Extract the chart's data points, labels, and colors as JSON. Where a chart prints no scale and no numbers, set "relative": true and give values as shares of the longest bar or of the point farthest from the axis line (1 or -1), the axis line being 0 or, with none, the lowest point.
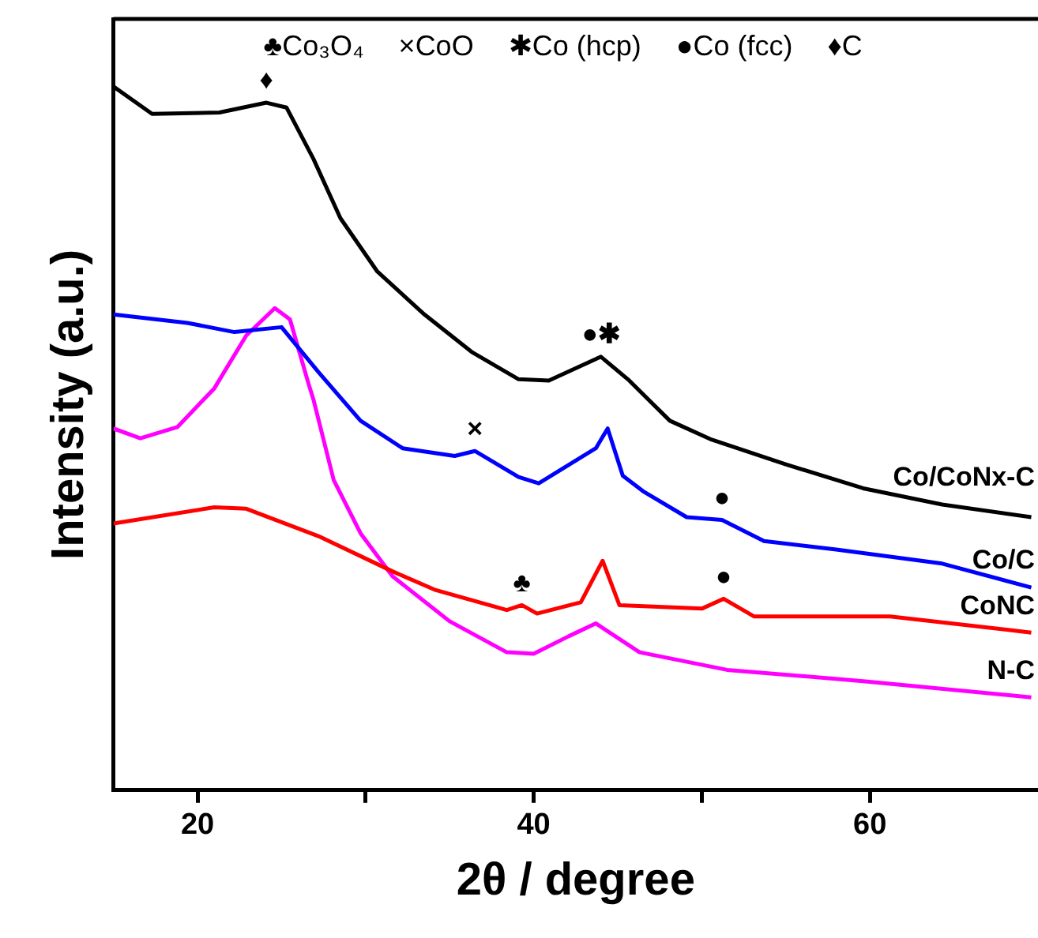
{
  "chart_data": {
    "type": "line",
    "relative": true,
    "xlabel": "2θ / degree",
    "ylabel": "Intensity (a.u.)",
    "xlim": [
      15,
      70
    ],
    "xticks": [
      20,
      {
        "value": 30,
        "label": null
      },
      40,
      {
        "value": 50,
        "label": null
      },
      60
    ],
    "marker": "none",
    "line_style": "solid",
    "grid": false,
    "legend": false,
    "series": [
      {
        "name": "Co/CoNx-C",
        "color": "#000000",
        "x": [
          15,
          17.3,
          21.3,
          24.1,
          25.3,
          26.9,
          28.5,
          30.7,
          33.5,
          36.3,
          39.1,
          40.9,
          44.0,
          45.6,
          48.1,
          50.6,
          55.0,
          59.6,
          64.3,
          69.6
        ],
        "values": [
          1.0,
          0.961,
          0.963,
          0.977,
          0.97,
          0.897,
          0.813,
          0.737,
          0.676,
          0.623,
          0.584,
          0.582,
          0.616,
          0.584,
          0.525,
          0.498,
          0.463,
          0.429,
          0.406,
          0.388
        ]
      },
      {
        "name": "Co/C",
        "color": "#0000ff",
        "x": [
          15,
          19.4,
          22.2,
          25.0,
          27.2,
          29.7,
          32.2,
          35.3,
          36.5,
          39.1,
          40.3,
          43.7,
          44.4,
          45.3,
          46.5,
          49.1,
          51.2,
          53.7,
          58.0,
          64.3,
          69.6
        ],
        "values": [
          0.676,
          0.664,
          0.651,
          0.658,
          0.594,
          0.525,
          0.486,
          0.475,
          0.482,
          0.445,
          0.436,
          0.486,
          0.514,
          0.447,
          0.425,
          0.388,
          0.384,
          0.354,
          0.342,
          0.322,
          0.288
        ]
      },
      {
        "name": "CoNC",
        "color": "#ff0000",
        "x": [
          15,
          21.0,
          22.9,
          27.2,
          31.6,
          34.1,
          38.4,
          39.3,
          40.2,
          42.8,
          44.1,
          45.1,
          50.0,
          51.3,
          53.1,
          61.2,
          69.6
        ],
        "values": [
          0.379,
          0.402,
          0.4,
          0.361,
          0.311,
          0.285,
          0.256,
          0.263,
          0.251,
          0.267,
          0.326,
          0.263,
          0.258,
          0.272,
          0.247,
          0.247,
          0.224
        ]
      },
      {
        "name": "N-C",
        "color": "#ff00ff",
        "x": [
          15,
          16.6,
          18.8,
          21.0,
          22.9,
          24.6,
          25.5,
          26.6,
          26.9,
          28.1,
          29.7,
          31.6,
          35.0,
          38.4,
          40.0,
          42.1,
          43.7,
          46.3,
          51.5,
          59.6,
          69.6
        ],
        "values": [
          0.514,
          0.5,
          0.516,
          0.571,
          0.646,
          0.685,
          0.669,
          0.578,
          0.555,
          0.441,
          0.365,
          0.304,
          0.24,
          0.196,
          0.194,
          0.219,
          0.237,
          0.196,
          0.171,
          0.155,
          0.132
        ]
      }
    ],
    "annotations": [
      "♣Co₃O₄",
      "×CoO",
      "✱Co (hcp)",
      "●Co (fcc)",
      "♦C",
      {
        "text": "♦",
        "x": 24.1,
        "y": 0.977
      },
      {
        "text": "●✱",
        "x": 44.0,
        "y": 0.616
      },
      {
        "text": "×",
        "x": 36.5,
        "y": 0.482
      },
      {
        "text": "●",
        "x": 51.2,
        "y": 0.384
      },
      {
        "text": "♣",
        "x": 39.3,
        "y": 0.263
      },
      {
        "text": "●",
        "x": 51.3,
        "y": 0.272
      }
    ]
  }
}
